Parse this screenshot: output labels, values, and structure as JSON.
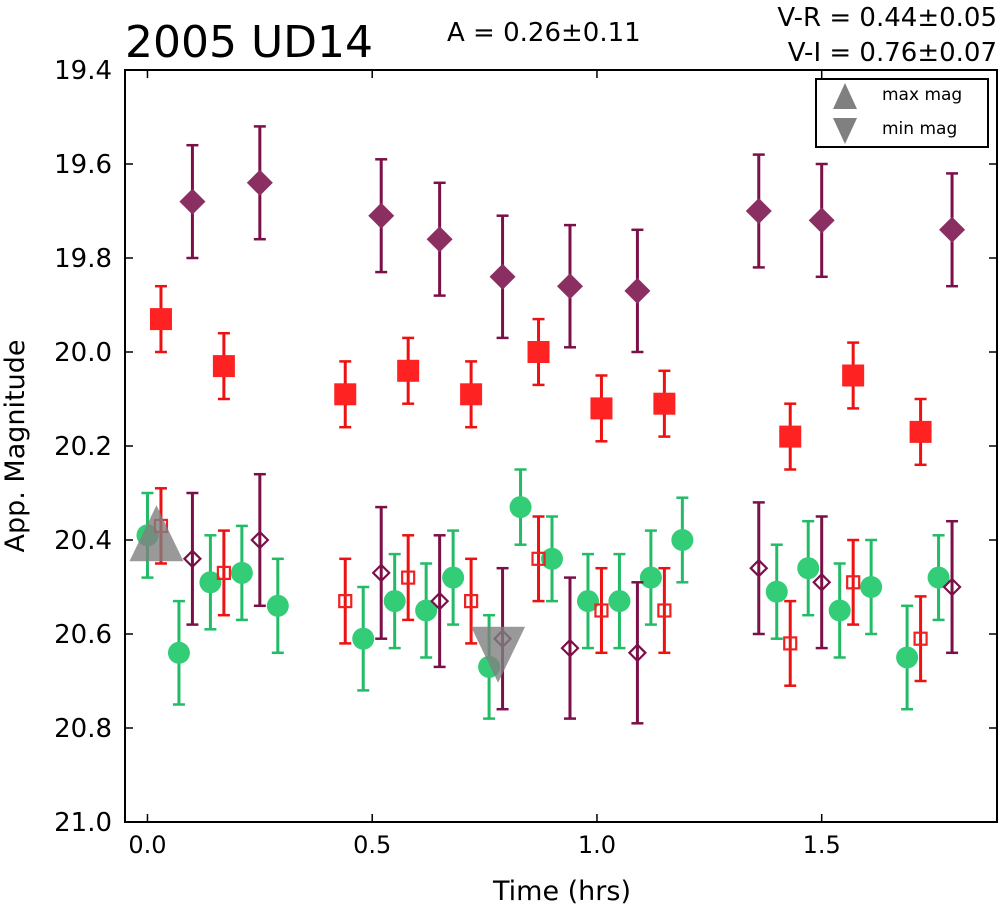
{
  "chart_data": {
    "type": "scatter",
    "title": "2005 UD14",
    "amplitude": "A  = 0.26±0.11",
    "color_vr": "V-R = 0.44±0.05",
    "color_vi": "V-I  = 0.76±0.07",
    "xlabel": "Time (hrs)",
    "ylabel": "App. Magnitude",
    "xlim": [
      -0.05,
      1.89
    ],
    "ylim": [
      21.0,
      19.4
    ],
    "y_inverted": true,
    "grid": false,
    "xticks": [
      0.0,
      0.5,
      1.0,
      1.5
    ],
    "xtick_labels": [
      "0.0",
      "0.5",
      "1.0",
      "1.5"
    ],
    "yticks": [
      19.4,
      19.6,
      19.8,
      20.0,
      20.2,
      20.4,
      20.6,
      20.8,
      21.0
    ],
    "ytick_labels": [
      "19.4",
      "19.6",
      "19.8",
      "20.0",
      "20.2",
      "20.4",
      "20.6",
      "20.8",
      "21.0"
    ],
    "legend": {
      "placement": "top-right",
      "entries": [
        {
          "label": "max mag",
          "marker": "triangle-up",
          "color": "#808080"
        },
        {
          "label": "min mag",
          "marker": "triangle-down",
          "color": "#808080"
        }
      ]
    },
    "series": [
      {
        "marker": "diamond",
        "filled": true,
        "color": "#8b2f62",
        "errcolor": "#7b1048",
        "points": [
          [
            0.1,
            19.68,
            0.12
          ],
          [
            0.25,
            19.64,
            0.12
          ],
          [
            0.52,
            19.71,
            0.12
          ],
          [
            0.65,
            19.76,
            0.12
          ],
          [
            0.79,
            19.84,
            0.13
          ],
          [
            0.94,
            19.86,
            0.13
          ],
          [
            1.09,
            19.87,
            0.13
          ],
          [
            1.36,
            19.7,
            0.12
          ],
          [
            1.5,
            19.72,
            0.12
          ],
          [
            1.79,
            19.74,
            0.12
          ]
        ]
      },
      {
        "marker": "square",
        "filled": true,
        "color": "#ff2222",
        "errcolor": "#ee1111",
        "points": [
          [
            0.03,
            19.93,
            0.07
          ],
          [
            0.17,
            20.03,
            0.07
          ],
          [
            0.44,
            20.09,
            0.07
          ],
          [
            0.58,
            20.04,
            0.07
          ],
          [
            0.72,
            20.09,
            0.07
          ],
          [
            0.87,
            20.0,
            0.07
          ],
          [
            1.01,
            20.12,
            0.07
          ],
          [
            1.15,
            20.11,
            0.07
          ],
          [
            1.43,
            20.18,
            0.07
          ],
          [
            1.57,
            20.05,
            0.07
          ],
          [
            1.72,
            20.17,
            0.07
          ]
        ]
      },
      {
        "marker": "circle",
        "filled": true,
        "color": "#33cc77",
        "errcolor": "#22bb66",
        "points": [
          [
            0.0,
            20.39,
            0.09
          ],
          [
            0.07,
            20.64,
            0.11
          ],
          [
            0.14,
            20.49,
            0.1
          ],
          [
            0.21,
            20.47,
            0.1
          ],
          [
            0.29,
            20.54,
            0.1
          ],
          [
            0.48,
            20.61,
            0.11
          ],
          [
            0.55,
            20.53,
            0.1
          ],
          [
            0.62,
            20.55,
            0.1
          ],
          [
            0.68,
            20.48,
            0.1
          ],
          [
            0.76,
            20.67,
            0.11
          ],
          [
            0.83,
            20.33,
            0.08
          ],
          [
            0.9,
            20.44,
            0.09
          ],
          [
            0.98,
            20.53,
            0.1
          ],
          [
            1.05,
            20.53,
            0.1
          ],
          [
            1.12,
            20.48,
            0.1
          ],
          [
            1.19,
            20.4,
            0.09
          ],
          [
            1.4,
            20.51,
            0.1
          ],
          [
            1.47,
            20.46,
            0.1
          ],
          [
            1.54,
            20.55,
            0.1
          ],
          [
            1.61,
            20.5,
            0.1
          ],
          [
            1.69,
            20.65,
            0.11
          ],
          [
            1.76,
            20.48,
            0.09
          ]
        ]
      },
      {
        "marker": "square",
        "filled": false,
        "color": "#ee2222",
        "errcolor": "#ee1111",
        "points": [
          [
            0.03,
            20.37,
            0.08
          ],
          [
            0.17,
            20.47,
            0.09
          ],
          [
            0.44,
            20.53,
            0.09
          ],
          [
            0.58,
            20.48,
            0.09
          ],
          [
            0.72,
            20.53,
            0.09
          ],
          [
            0.87,
            20.44,
            0.09
          ],
          [
            1.01,
            20.55,
            0.09
          ],
          [
            1.15,
            20.55,
            0.09
          ],
          [
            1.43,
            20.62,
            0.09
          ],
          [
            1.57,
            20.49,
            0.09
          ],
          [
            1.72,
            20.61,
            0.09
          ]
        ]
      },
      {
        "marker": "diamond",
        "filled": false,
        "color": "#7b1048",
        "errcolor": "#7b1048",
        "points": [
          [
            0.1,
            20.44,
            0.14
          ],
          [
            0.25,
            20.4,
            0.14
          ],
          [
            0.52,
            20.47,
            0.14
          ],
          [
            0.65,
            20.53,
            0.14
          ],
          [
            0.79,
            20.61,
            0.15
          ],
          [
            0.94,
            20.63,
            0.15
          ],
          [
            1.09,
            20.64,
            0.15
          ],
          [
            1.36,
            20.46,
            0.14
          ],
          [
            1.5,
            20.49,
            0.14
          ],
          [
            1.79,
            20.5,
            0.14
          ]
        ]
      }
    ],
    "extremes": [
      {
        "label": "max mag",
        "x": 0.02,
        "y": 20.39,
        "marker": "triangle-up",
        "color": "#808080"
      },
      {
        "label": "min mag",
        "x": 0.78,
        "y": 20.64,
        "marker": "triangle-down",
        "color": "#808080"
      }
    ]
  }
}
